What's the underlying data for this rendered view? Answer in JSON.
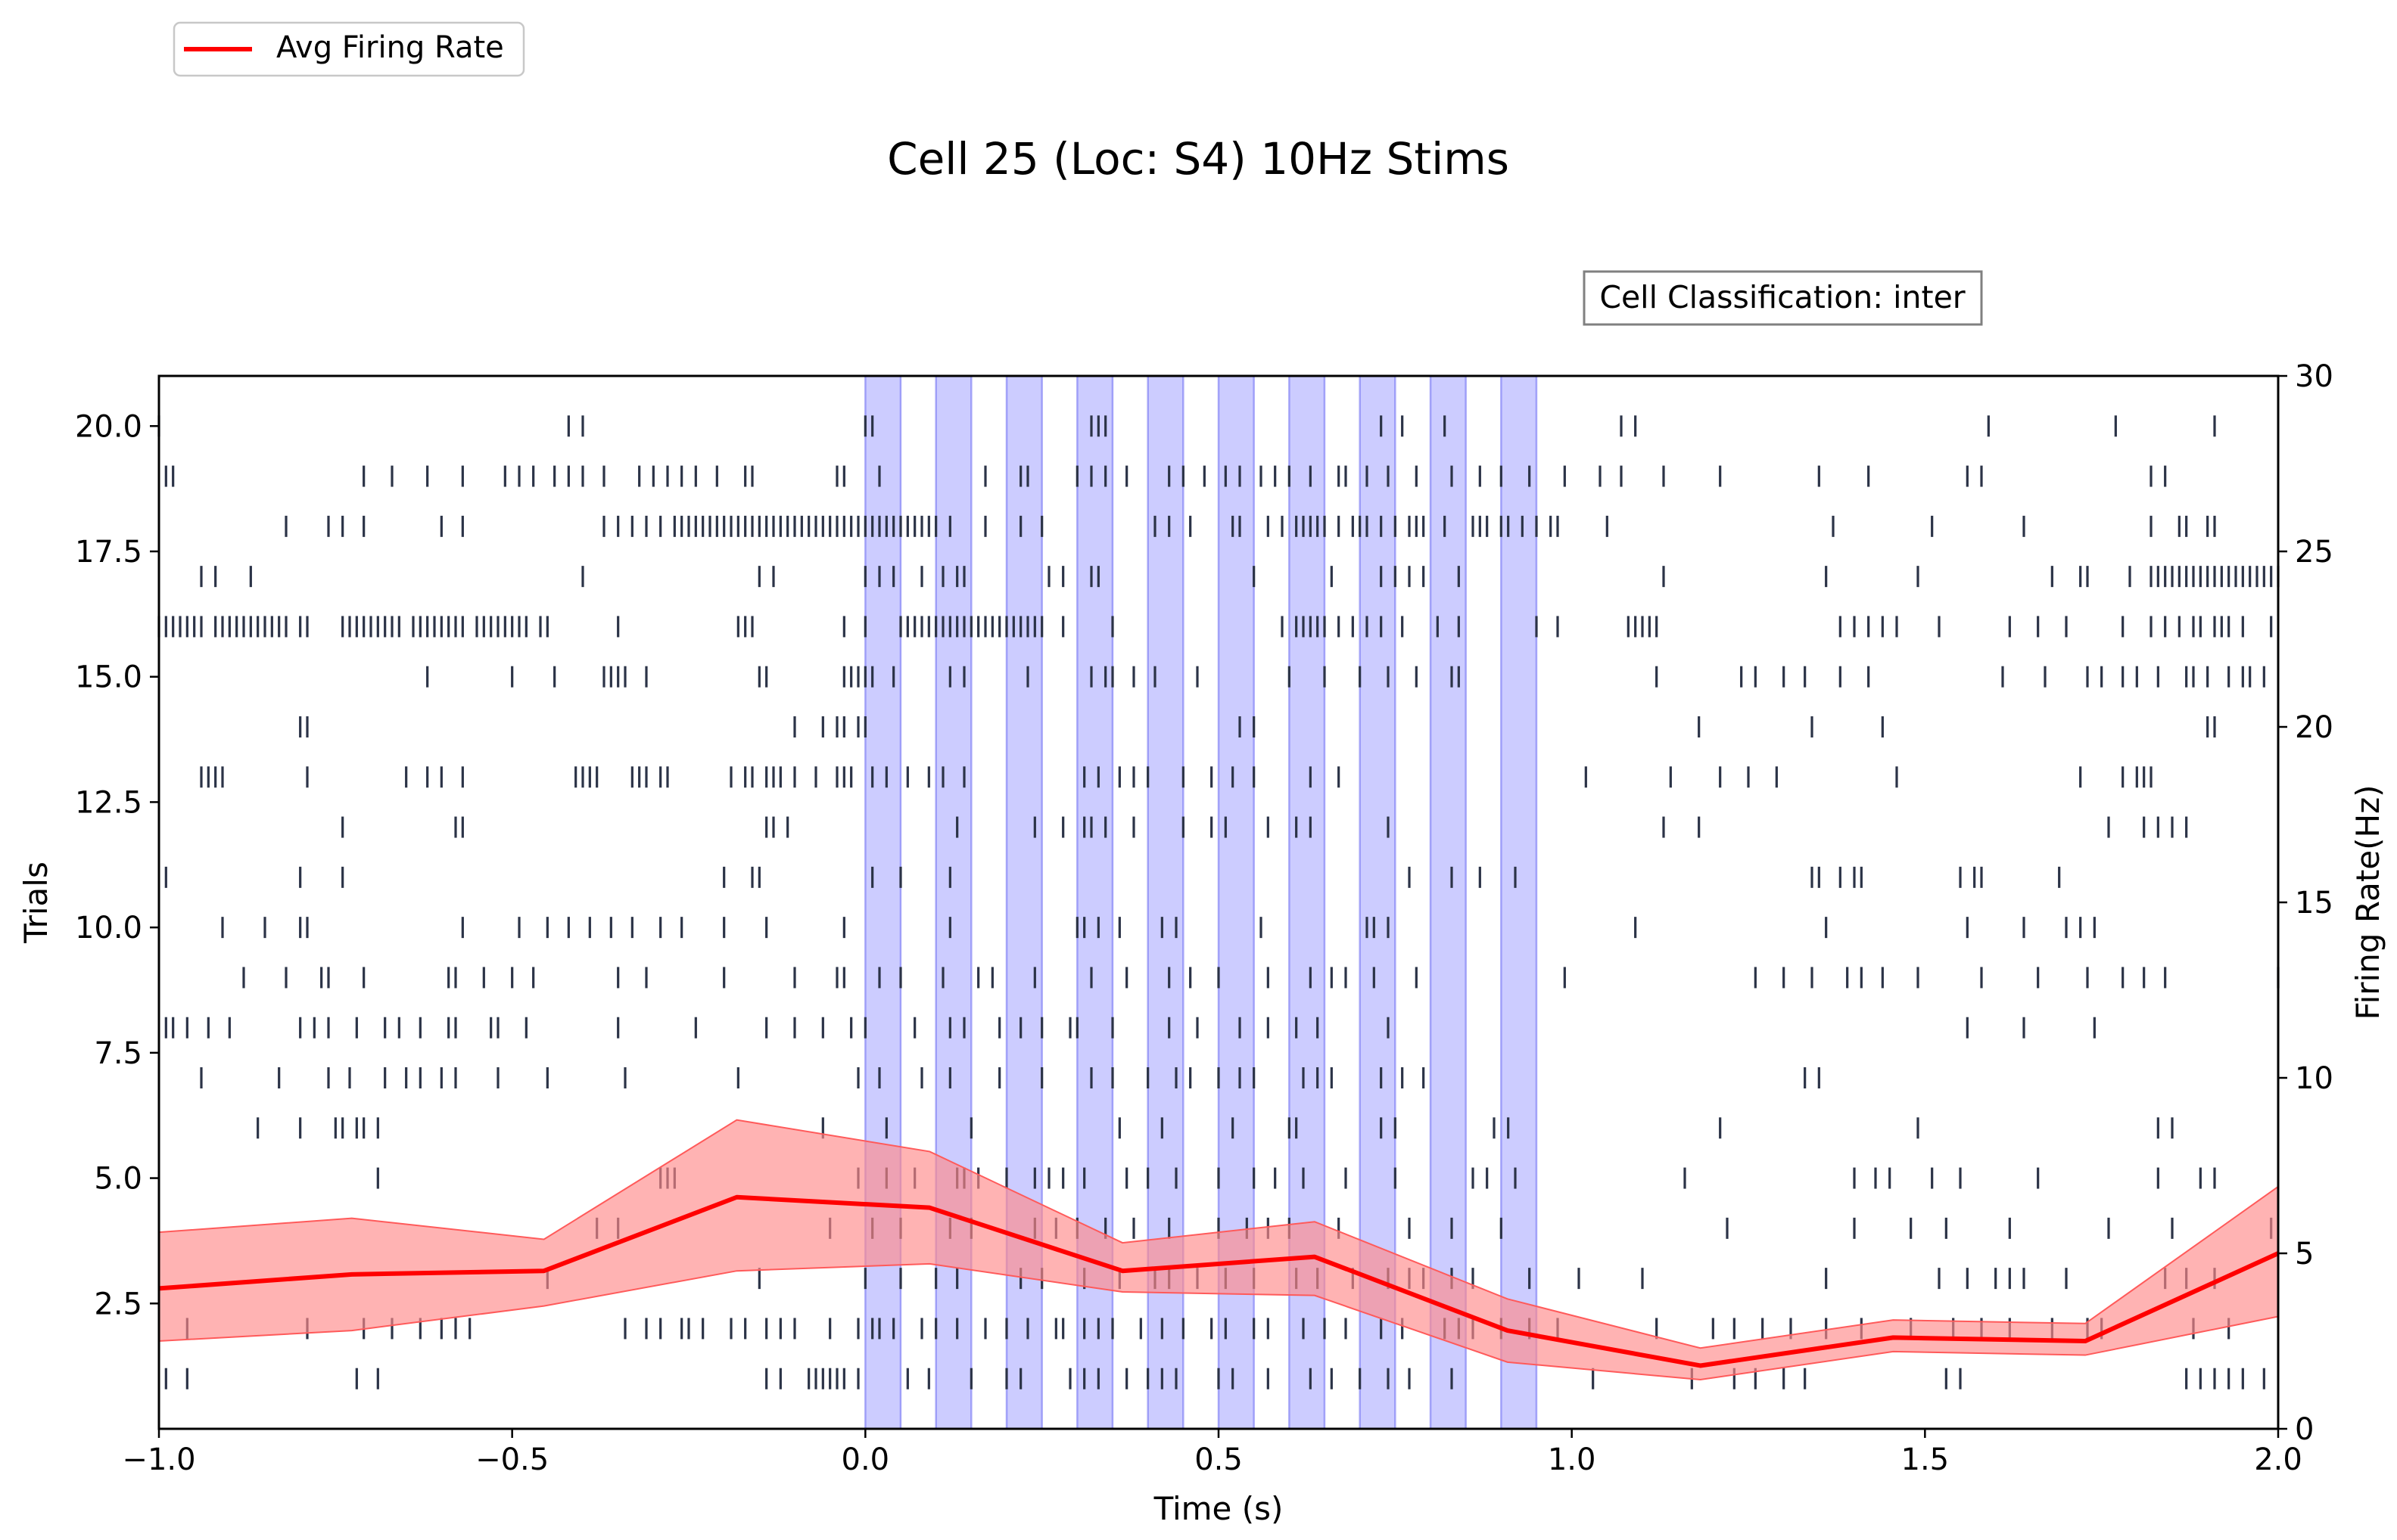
{
  "chart_data": {
    "type": "raster",
    "title": "Cell 25 (Loc: S4) 10Hz Stims",
    "annotation": "Cell Classification: inter",
    "xlabel": "Time (s)",
    "ylabel": "Trials",
    "y2label": "Firing Rate(Hz)",
    "xlim": [
      -1.0,
      2.0
    ],
    "ylim": [
      0,
      21
    ],
    "y2lim": [
      0,
      30
    ],
    "xticks": [
      "−1.0",
      "−0.5",
      "0.0",
      "0.5",
      "1.0",
      "1.5",
      "2.0"
    ],
    "yticks": [
      "2.5",
      "5.0",
      "7.5",
      "10.0",
      "12.5",
      "15.0",
      "17.5",
      "20.0"
    ],
    "y2ticks": [
      "0",
      "5",
      "10",
      "15",
      "20",
      "25",
      "30"
    ],
    "legend": {
      "label": "Avg Firing Rate",
      "location": "top-left, outside"
    },
    "colors": {
      "spikes": "#2b3347",
      "rate_line": "#ff0000",
      "rate_band": "#ff8a8a",
      "stim": "#8080ff",
      "stim_edge": "#6a6af2"
    },
    "stim_windows": [
      [
        0.0,
        0.05
      ],
      [
        0.1,
        0.15
      ],
      [
        0.2,
        0.25
      ],
      [
        0.3,
        0.35
      ],
      [
        0.4,
        0.45
      ],
      [
        0.5,
        0.55
      ],
      [
        0.6,
        0.65
      ],
      [
        0.7,
        0.75
      ],
      [
        0.8,
        0.85
      ],
      [
        0.9,
        0.95
      ]
    ],
    "firing_rate": {
      "name": "Avg Firing Rate",
      "x": [
        -1.0,
        -0.727,
        -0.455,
        -0.182,
        0.091,
        0.364,
        0.636,
        0.909,
        1.182,
        1.455,
        1.727,
        2.0
      ],
      "y": [
        4.0,
        4.4,
        4.5,
        6.6,
        6.3,
        4.5,
        4.9,
        2.8,
        1.8,
        2.6,
        2.5,
        5.0
      ],
      "lower": [
        2.5,
        2.8,
        3.5,
        4.5,
        4.7,
        3.9,
        3.8,
        1.9,
        1.4,
        2.2,
        2.1,
        3.2
      ],
      "upper": [
        5.6,
        6.0,
        5.4,
        8.8,
        7.9,
        5.3,
        5.9,
        3.7,
        2.3,
        3.1,
        3.0,
        6.9
      ]
    },
    "spike_trains": [
      {
        "trial": 1,
        "times": [
          -0.99,
          -0.96,
          -0.72,
          -0.69,
          -0.14,
          -0.12,
          -0.08,
          -0.07,
          -0.06,
          -0.05,
          -0.04,
          -0.03,
          -0.01,
          0.06,
          0.09,
          0.15,
          0.2,
          0.22,
          0.29,
          0.31,
          0.33,
          0.37,
          0.4,
          0.42,
          0.44,
          0.5,
          0.52,
          0.57,
          0.63,
          0.66,
          0.7,
          0.74,
          0.77,
          0.83,
          1.03,
          1.17,
          1.23,
          1.26,
          1.3,
          1.33,
          1.53,
          1.55,
          1.87,
          1.89,
          1.91,
          1.93,
          1.95,
          1.98
        ]
      },
      {
        "trial": 2,
        "times": [
          -0.96,
          -0.79,
          -0.71,
          -0.67,
          -0.63,
          -0.6,
          -0.58,
          -0.56,
          -0.34,
          -0.31,
          -0.29,
          -0.26,
          -0.25,
          -0.23,
          -0.19,
          -0.17,
          -0.14,
          -0.12,
          -0.1,
          -0.05,
          -0.01,
          0.01,
          0.02,
          0.04,
          0.08,
          0.1,
          0.13,
          0.17,
          0.2,
          0.23,
          0.27,
          0.28,
          0.31,
          0.33,
          0.35,
          0.39,
          0.42,
          0.45,
          0.49,
          0.51,
          0.55,
          0.57,
          0.62,
          0.65,
          0.68,
          0.73,
          0.76,
          0.82,
          0.84,
          0.86,
          0.9,
          0.94,
          0.98,
          1.12,
          1.2,
          1.23,
          1.27,
          1.31,
          1.36,
          1.41,
          1.48,
          1.54,
          1.58,
          1.62,
          1.68,
          1.73,
          1.75,
          1.88,
          1.93
        ]
      },
      {
        "trial": 3,
        "times": [
          -0.45,
          -0.15,
          0.0,
          0.05,
          0.1,
          0.13,
          0.22,
          0.25,
          0.31,
          0.36,
          0.41,
          0.43,
          0.47,
          0.51,
          0.55,
          0.61,
          0.64,
          0.69,
          0.74,
          0.77,
          0.79,
          0.83,
          0.86,
          0.94,
          1.01,
          1.1,
          1.36,
          1.52,
          1.56,
          1.6,
          1.62,
          1.64,
          1.7,
          1.84,
          1.87,
          1.91
        ]
      },
      {
        "trial": 4,
        "times": [
          -0.35,
          -0.38,
          -0.05,
          0.01,
          0.05,
          0.12,
          0.15,
          0.24,
          0.27,
          0.3,
          0.34,
          0.38,
          0.43,
          0.5,
          0.54,
          0.57,
          0.6,
          0.67,
          0.77,
          0.83,
          0.9,
          1.22,
          1.4,
          1.48,
          1.53,
          1.62,
          1.76,
          1.85,
          1.99
        ]
      },
      {
        "trial": 5,
        "times": [
          -0.69,
          -0.29,
          -0.28,
          -0.27,
          -0.01,
          0.03,
          0.07,
          0.13,
          0.14,
          0.16,
          0.2,
          0.24,
          0.26,
          0.28,
          0.31,
          0.37,
          0.4,
          0.44,
          0.5,
          0.55,
          0.58,
          0.62,
          0.68,
          0.75,
          0.86,
          0.88,
          0.92,
          1.16,
          1.4,
          1.43,
          1.45,
          1.51,
          1.55,
          1.66,
          1.83,
          1.89,
          1.91
        ]
      },
      {
        "trial": 6,
        "times": [
          -0.86,
          -0.8,
          -0.75,
          -0.74,
          -0.72,
          -0.71,
          -0.69,
          -0.06,
          0.03,
          0.15,
          0.36,
          0.42,
          0.52,
          0.6,
          0.61,
          0.73,
          0.75,
          0.89,
          0.91,
          1.21,
          1.49,
          1.83,
          1.85
        ]
      },
      {
        "trial": 7,
        "times": [
          -0.94,
          -0.83,
          -0.76,
          -0.73,
          -0.68,
          -0.65,
          -0.63,
          -0.6,
          -0.58,
          -0.52,
          -0.45,
          -0.34,
          -0.18,
          -0.01,
          0.02,
          0.08,
          0.12,
          0.19,
          0.25,
          0.32,
          0.35,
          0.4,
          0.44,
          0.46,
          0.5,
          0.53,
          0.55,
          0.62,
          0.64,
          0.66,
          0.73,
          0.76,
          0.79,
          1.33,
          1.35
        ]
      },
      {
        "trial": 8,
        "times": [
          -0.99,
          -0.98,
          -0.96,
          -0.93,
          -0.9,
          -0.8,
          -0.78,
          -0.76,
          -0.72,
          -0.68,
          -0.66,
          -0.63,
          -0.59,
          -0.58,
          -0.53,
          -0.52,
          -0.48,
          -0.35,
          -0.24,
          -0.14,
          -0.1,
          -0.06,
          -0.02,
          0.0,
          0.07,
          0.12,
          0.14,
          0.19,
          0.22,
          0.25,
          0.29,
          0.3,
          0.35,
          0.43,
          0.47,
          0.53,
          0.57,
          0.61,
          0.64,
          0.74,
          1.56,
          1.64,
          1.74
        ]
      },
      {
        "trial": 9,
        "times": [
          -0.88,
          -0.82,
          -0.77,
          -0.76,
          -0.71,
          -0.59,
          -0.58,
          -0.54,
          -0.5,
          -0.47,
          -0.35,
          -0.31,
          -0.2,
          -0.1,
          -0.04,
          -0.03,
          0.02,
          0.05,
          0.11,
          0.16,
          0.18,
          0.24,
          0.32,
          0.37,
          0.43,
          0.46,
          0.5,
          0.57,
          0.63,
          0.66,
          0.68,
          0.72,
          0.78,
          0.99,
          1.26,
          1.3,
          1.34,
          1.39,
          1.41,
          1.44,
          1.49,
          1.58,
          1.66,
          1.73,
          1.78,
          1.81,
          1.84,
          2.0
        ]
      },
      {
        "trial": 10,
        "times": [
          -0.91,
          -0.85,
          -0.8,
          -0.79,
          -0.57,
          -0.49,
          -0.45,
          -0.42,
          -0.39,
          -0.36,
          -0.33,
          -0.29,
          -0.26,
          -0.2,
          -0.14,
          -0.03,
          0.12,
          0.3,
          0.31,
          0.33,
          0.36,
          0.42,
          0.44,
          0.56,
          0.71,
          0.72,
          0.74,
          1.09,
          1.36,
          1.56,
          1.64,
          1.7,
          1.72,
          1.74
        ]
      },
      {
        "trial": 11,
        "times": [
          -0.99,
          -0.8,
          -0.74,
          -0.2,
          -0.16,
          -0.15,
          0.01,
          0.05,
          0.12,
          0.77,
          0.83,
          0.87,
          0.92,
          1.34,
          1.35,
          1.38,
          1.4,
          1.41,
          1.55,
          1.57,
          1.58,
          1.69
        ]
      },
      {
        "trial": 12,
        "times": [
          -0.74,
          -0.58,
          -0.57,
          -0.14,
          -0.13,
          -0.11,
          0.13,
          0.24,
          0.28,
          0.31,
          0.32,
          0.34,
          0.38,
          0.45,
          0.49,
          0.51,
          0.57,
          0.61,
          0.63,
          0.74,
          1.13,
          1.18,
          1.76,
          1.81,
          1.83,
          1.85,
          1.87
        ]
      },
      {
        "trial": 13,
        "times": [
          -0.94,
          -0.93,
          -0.92,
          -0.91,
          -0.79,
          -0.65,
          -0.62,
          -0.6,
          -0.57,
          -0.41,
          -0.4,
          -0.39,
          -0.38,
          -0.33,
          -0.32,
          -0.31,
          -0.29,
          -0.28,
          -0.19,
          -0.17,
          -0.16,
          -0.14,
          -0.13,
          -0.12,
          -0.1,
          -0.07,
          -0.04,
          -0.03,
          -0.02,
          0.01,
          0.03,
          0.06,
          0.09,
          0.11,
          0.14,
          0.31,
          0.33,
          0.36,
          0.38,
          0.4,
          0.45,
          0.49,
          0.52,
          0.55,
          0.63,
          0.67,
          1.02,
          1.14,
          1.21,
          1.25,
          1.29,
          1.46,
          1.72,
          1.78,
          1.8,
          1.81,
          1.82
        ]
      },
      {
        "trial": 14,
        "times": [
          -0.8,
          -0.79,
          -0.1,
          -0.06,
          -0.04,
          -0.03,
          -0.01,
          0.0,
          0.53,
          0.55,
          1.18,
          1.34,
          1.44,
          1.9,
          1.91
        ]
      },
      {
        "trial": 15,
        "times": [
          -0.62,
          -0.5,
          -0.44,
          -0.37,
          -0.36,
          -0.35,
          -0.34,
          -0.31,
          -0.15,
          -0.14,
          -0.03,
          -0.02,
          -0.01,
          0.0,
          0.01,
          0.04,
          0.12,
          0.14,
          0.23,
          0.32,
          0.34,
          0.35,
          0.38,
          0.41,
          0.47,
          0.6,
          0.65,
          0.7,
          0.74,
          0.78,
          0.83,
          0.84,
          1.12,
          1.24,
          1.26,
          1.3,
          1.33,
          1.38,
          1.42,
          1.61,
          1.67,
          1.73,
          1.75,
          1.78,
          1.8,
          1.83,
          1.87,
          1.88,
          1.9,
          1.93,
          1.95,
          1.96,
          1.98
        ]
      },
      {
        "trial": 16,
        "times": [
          -1.0,
          -0.99,
          -0.98,
          -0.97,
          -0.96,
          -0.95,
          -0.94,
          -0.92,
          -0.91,
          -0.9,
          -0.89,
          -0.88,
          -0.87,
          -0.86,
          -0.85,
          -0.84,
          -0.83,
          -0.82,
          -0.8,
          -0.79,
          -0.74,
          -0.73,
          -0.72,
          -0.71,
          -0.7,
          -0.69,
          -0.68,
          -0.67,
          -0.66,
          -0.64,
          -0.63,
          -0.62,
          -0.61,
          -0.6,
          -0.59,
          -0.58,
          -0.57,
          -0.55,
          -0.54,
          -0.53,
          -0.52,
          -0.51,
          -0.5,
          -0.49,
          -0.48,
          -0.46,
          -0.45,
          -0.35,
          -0.18,
          -0.17,
          -0.16,
          -0.03,
          0.0,
          0.05,
          0.06,
          0.07,
          0.08,
          0.09,
          0.1,
          0.11,
          0.12,
          0.13,
          0.14,
          0.15,
          0.16,
          0.17,
          0.18,
          0.19,
          0.2,
          0.21,
          0.22,
          0.23,
          0.24,
          0.25,
          0.28,
          0.35,
          0.59,
          0.61,
          0.62,
          0.63,
          0.64,
          0.65,
          0.67,
          0.69,
          0.71,
          0.73,
          0.76,
          0.81,
          0.84,
          0.95,
          0.98,
          1.08,
          1.09,
          1.1,
          1.11,
          1.12,
          1.38,
          1.4,
          1.42,
          1.44,
          1.46,
          1.52,
          1.62,
          1.66,
          1.7,
          1.78,
          1.82,
          1.84,
          1.86,
          1.88,
          1.89,
          1.91,
          1.92,
          1.93,
          1.95,
          1.99
        ]
      },
      {
        "trial": 17,
        "times": [
          -0.94,
          -0.92,
          -0.87,
          -0.4,
          -0.15,
          -0.13,
          0.0,
          0.02,
          0.04,
          0.08,
          0.11,
          0.13,
          0.14,
          0.26,
          0.28,
          0.32,
          0.33,
          0.55,
          0.66,
          0.73,
          0.75,
          0.77,
          0.79,
          0.84,
          1.13,
          1.36,
          1.49,
          1.68,
          1.72,
          1.73,
          1.79,
          1.82,
          1.83,
          1.84,
          1.85,
          1.86,
          1.87,
          1.88,
          1.89,
          1.9,
          1.91,
          1.92,
          1.93,
          1.94,
          1.95,
          1.96,
          1.97,
          1.98,
          1.99,
          2.0
        ]
      },
      {
        "trial": 18,
        "times": [
          -0.82,
          -0.76,
          -0.74,
          -0.71,
          -0.6,
          -0.57,
          -0.37,
          -0.35,
          -0.33,
          -0.31,
          -0.29,
          -0.27,
          -0.26,
          -0.25,
          -0.24,
          -0.23,
          -0.22,
          -0.21,
          -0.2,
          -0.19,
          -0.18,
          -0.17,
          -0.16,
          -0.15,
          -0.14,
          -0.13,
          -0.12,
          -0.11,
          -0.1,
          -0.09,
          -0.08,
          -0.07,
          -0.06,
          -0.05,
          -0.04,
          -0.03,
          -0.02,
          -0.01,
          0.0,
          0.01,
          0.02,
          0.03,
          0.04,
          0.05,
          0.06,
          0.07,
          0.08,
          0.09,
          0.1,
          0.12,
          0.17,
          0.22,
          0.25,
          0.41,
          0.43,
          0.46,
          0.52,
          0.53,
          0.57,
          0.59,
          0.61,
          0.62,
          0.63,
          0.64,
          0.65,
          0.67,
          0.69,
          0.7,
          0.71,
          0.73,
          0.75,
          0.77,
          0.78,
          0.79,
          0.82,
          0.86,
          0.87,
          0.88,
          0.9,
          0.91,
          0.93,
          0.95,
          0.97,
          0.98,
          1.05,
          1.37,
          1.51,
          1.64,
          1.82,
          1.86,
          1.87,
          1.9,
          1.91
        ]
      },
      {
        "trial": 19,
        "times": [
          -0.99,
          -0.98,
          -0.71,
          -0.67,
          -0.62,
          -0.57,
          -0.51,
          -0.49,
          -0.47,
          -0.44,
          -0.42,
          -0.4,
          -0.37,
          -0.32,
          -0.3,
          -0.28,
          -0.26,
          -0.24,
          -0.21,
          -0.17,
          -0.16,
          -0.04,
          -0.03,
          0.02,
          0.17,
          0.22,
          0.23,
          0.3,
          0.32,
          0.34,
          0.37,
          0.43,
          0.45,
          0.48,
          0.51,
          0.53,
          0.56,
          0.58,
          0.6,
          0.63,
          0.67,
          0.68,
          0.71,
          0.74,
          0.78,
          0.83,
          0.87,
          0.9,
          0.94,
          0.99,
          1.04,
          1.07,
          1.13,
          1.21,
          1.35,
          1.42,
          1.56,
          1.58,
          1.82,
          1.84
        ]
      },
      {
        "trial": 20,
        "times": [
          -1.0,
          -0.42,
          -0.4,
          0.0,
          0.01,
          0.32,
          0.33,
          0.34,
          0.73,
          0.76,
          0.82,
          1.07,
          1.09,
          1.59,
          1.77,
          1.91
        ]
      }
    ]
  }
}
